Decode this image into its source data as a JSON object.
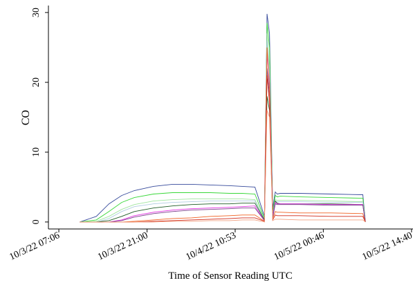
{
  "chart_data": {
    "type": "line",
    "y_label": "CO",
    "x_label": "Time of Sensor Reading UTC",
    "x": [
      10.4,
      13,
      15,
      17,
      19,
      22,
      25,
      28,
      31,
      34,
      36,
      38,
      39.5,
      39.9,
      40.3,
      40.8,
      41.2,
      41.5,
      42,
      45,
      50,
      55,
      55.4
    ],
    "xlim": [
      5.46,
      62.9
    ],
    "xticks": [
      {
        "value": 7.1,
        "label": "10/3/22 07:06"
      },
      {
        "value": 21,
        "label": "10/3/22 21:00"
      },
      {
        "value": 34.883,
        "label": "10/4/22 10:53"
      },
      {
        "value": 48.767,
        "label": "10/5/22 00:46"
      },
      {
        "value": 62.667,
        "label": "10/5/22 14:40"
      }
    ],
    "ylim": [
      -1,
      31
    ],
    "yticks": [
      0,
      10,
      20,
      30
    ],
    "series": [
      {
        "color": "#34489a",
        "values": [
          0,
          0.8,
          2.6,
          3.8,
          4.5,
          5.1,
          5.4,
          5.4,
          5.3,
          5.2,
          5.1,
          5.0,
          0.8,
          29.8,
          27,
          2,
          4.3,
          4.0,
          4.1,
          4.1,
          4.0,
          3.9,
          0
        ]
      },
      {
        "color": "#37d737",
        "values": [
          0,
          0.3,
          1.5,
          2.8,
          3.5,
          4.0,
          4.2,
          4.2,
          4.2,
          4.1,
          4.1,
          4.0,
          0.5,
          28.5,
          25,
          1.5,
          3.8,
          3.6,
          3.7,
          3.6,
          3.5,
          3.4,
          0
        ]
      },
      {
        "color": "#9fe59f",
        "values": [
          0,
          0.1,
          0.8,
          1.8,
          2.5,
          3.0,
          3.2,
          3.3,
          3.3,
          3.3,
          3.3,
          3.2,
          0.4,
          27,
          22,
          1.2,
          3.2,
          3.1,
          3.1,
          3.1,
          3.0,
          2.9,
          0
        ]
      },
      {
        "color": "#b0cde0",
        "values": [
          0,
          0,
          0.5,
          1.5,
          2.2,
          2.6,
          2.8,
          2.9,
          3.0,
          3.0,
          3.0,
          3.0,
          0.3,
          26,
          21,
          1.0,
          3.0,
          2.9,
          2.9,
          2.9,
          2.8,
          2.8,
          0
        ]
      },
      {
        "color": "#1d5a24",
        "values": [
          0,
          0,
          0.2,
          0.8,
          1.5,
          2.0,
          2.3,
          2.5,
          2.6,
          2.6,
          2.7,
          2.7,
          0.3,
          18,
          16,
          0.8,
          3.0,
          2.7,
          2.6,
          2.6,
          2.6,
          2.5,
          0
        ]
      },
      {
        "color": "#e030e0",
        "values": [
          0,
          0,
          0,
          0.3,
          0.9,
          1.4,
          1.7,
          1.9,
          2.0,
          2.1,
          2.2,
          2.3,
          0.2,
          24,
          20,
          0.8,
          2.8,
          2.6,
          2.6,
          2.6,
          2.5,
          2.5,
          0
        ]
      },
      {
        "color": "#7b3c8c",
        "values": [
          0,
          0,
          0,
          0.2,
          0.7,
          1.2,
          1.5,
          1.7,
          1.8,
          1.9,
          2.0,
          2.0,
          0.2,
          22,
          18,
          0.6,
          2.6,
          2.5,
          2.5,
          2.5,
          2.4,
          2.4,
          0
        ]
      },
      {
        "color": "#f06020",
        "values": [
          0,
          0,
          0,
          0,
          0.1,
          0.3,
          0.5,
          0.6,
          0.8,
          0.9,
          1.0,
          1.0,
          0.1,
          25,
          19,
          0.5,
          1.5,
          1.4,
          1.4,
          1.3,
          1.3,
          1.2,
          0
        ]
      },
      {
        "color": "#d02818",
        "values": [
          0,
          0,
          0,
          0,
          0,
          0.1,
          0.2,
          0.3,
          0.4,
          0.5,
          0.6,
          0.6,
          0.1,
          21,
          17,
          0.3,
          1.0,
          0.9,
          0.9,
          0.9,
          0.8,
          0.8,
          0
        ]
      },
      {
        "color": "#f0a080",
        "values": [
          0,
          0,
          0,
          0,
          0,
          0,
          0.1,
          0.1,
          0.2,
          0.2,
          0.3,
          0.3,
          0,
          16,
          15,
          0.2,
          0.4,
          0.4,
          0.4,
          0.3,
          0.3,
          0.3,
          0
        ]
      }
    ]
  }
}
